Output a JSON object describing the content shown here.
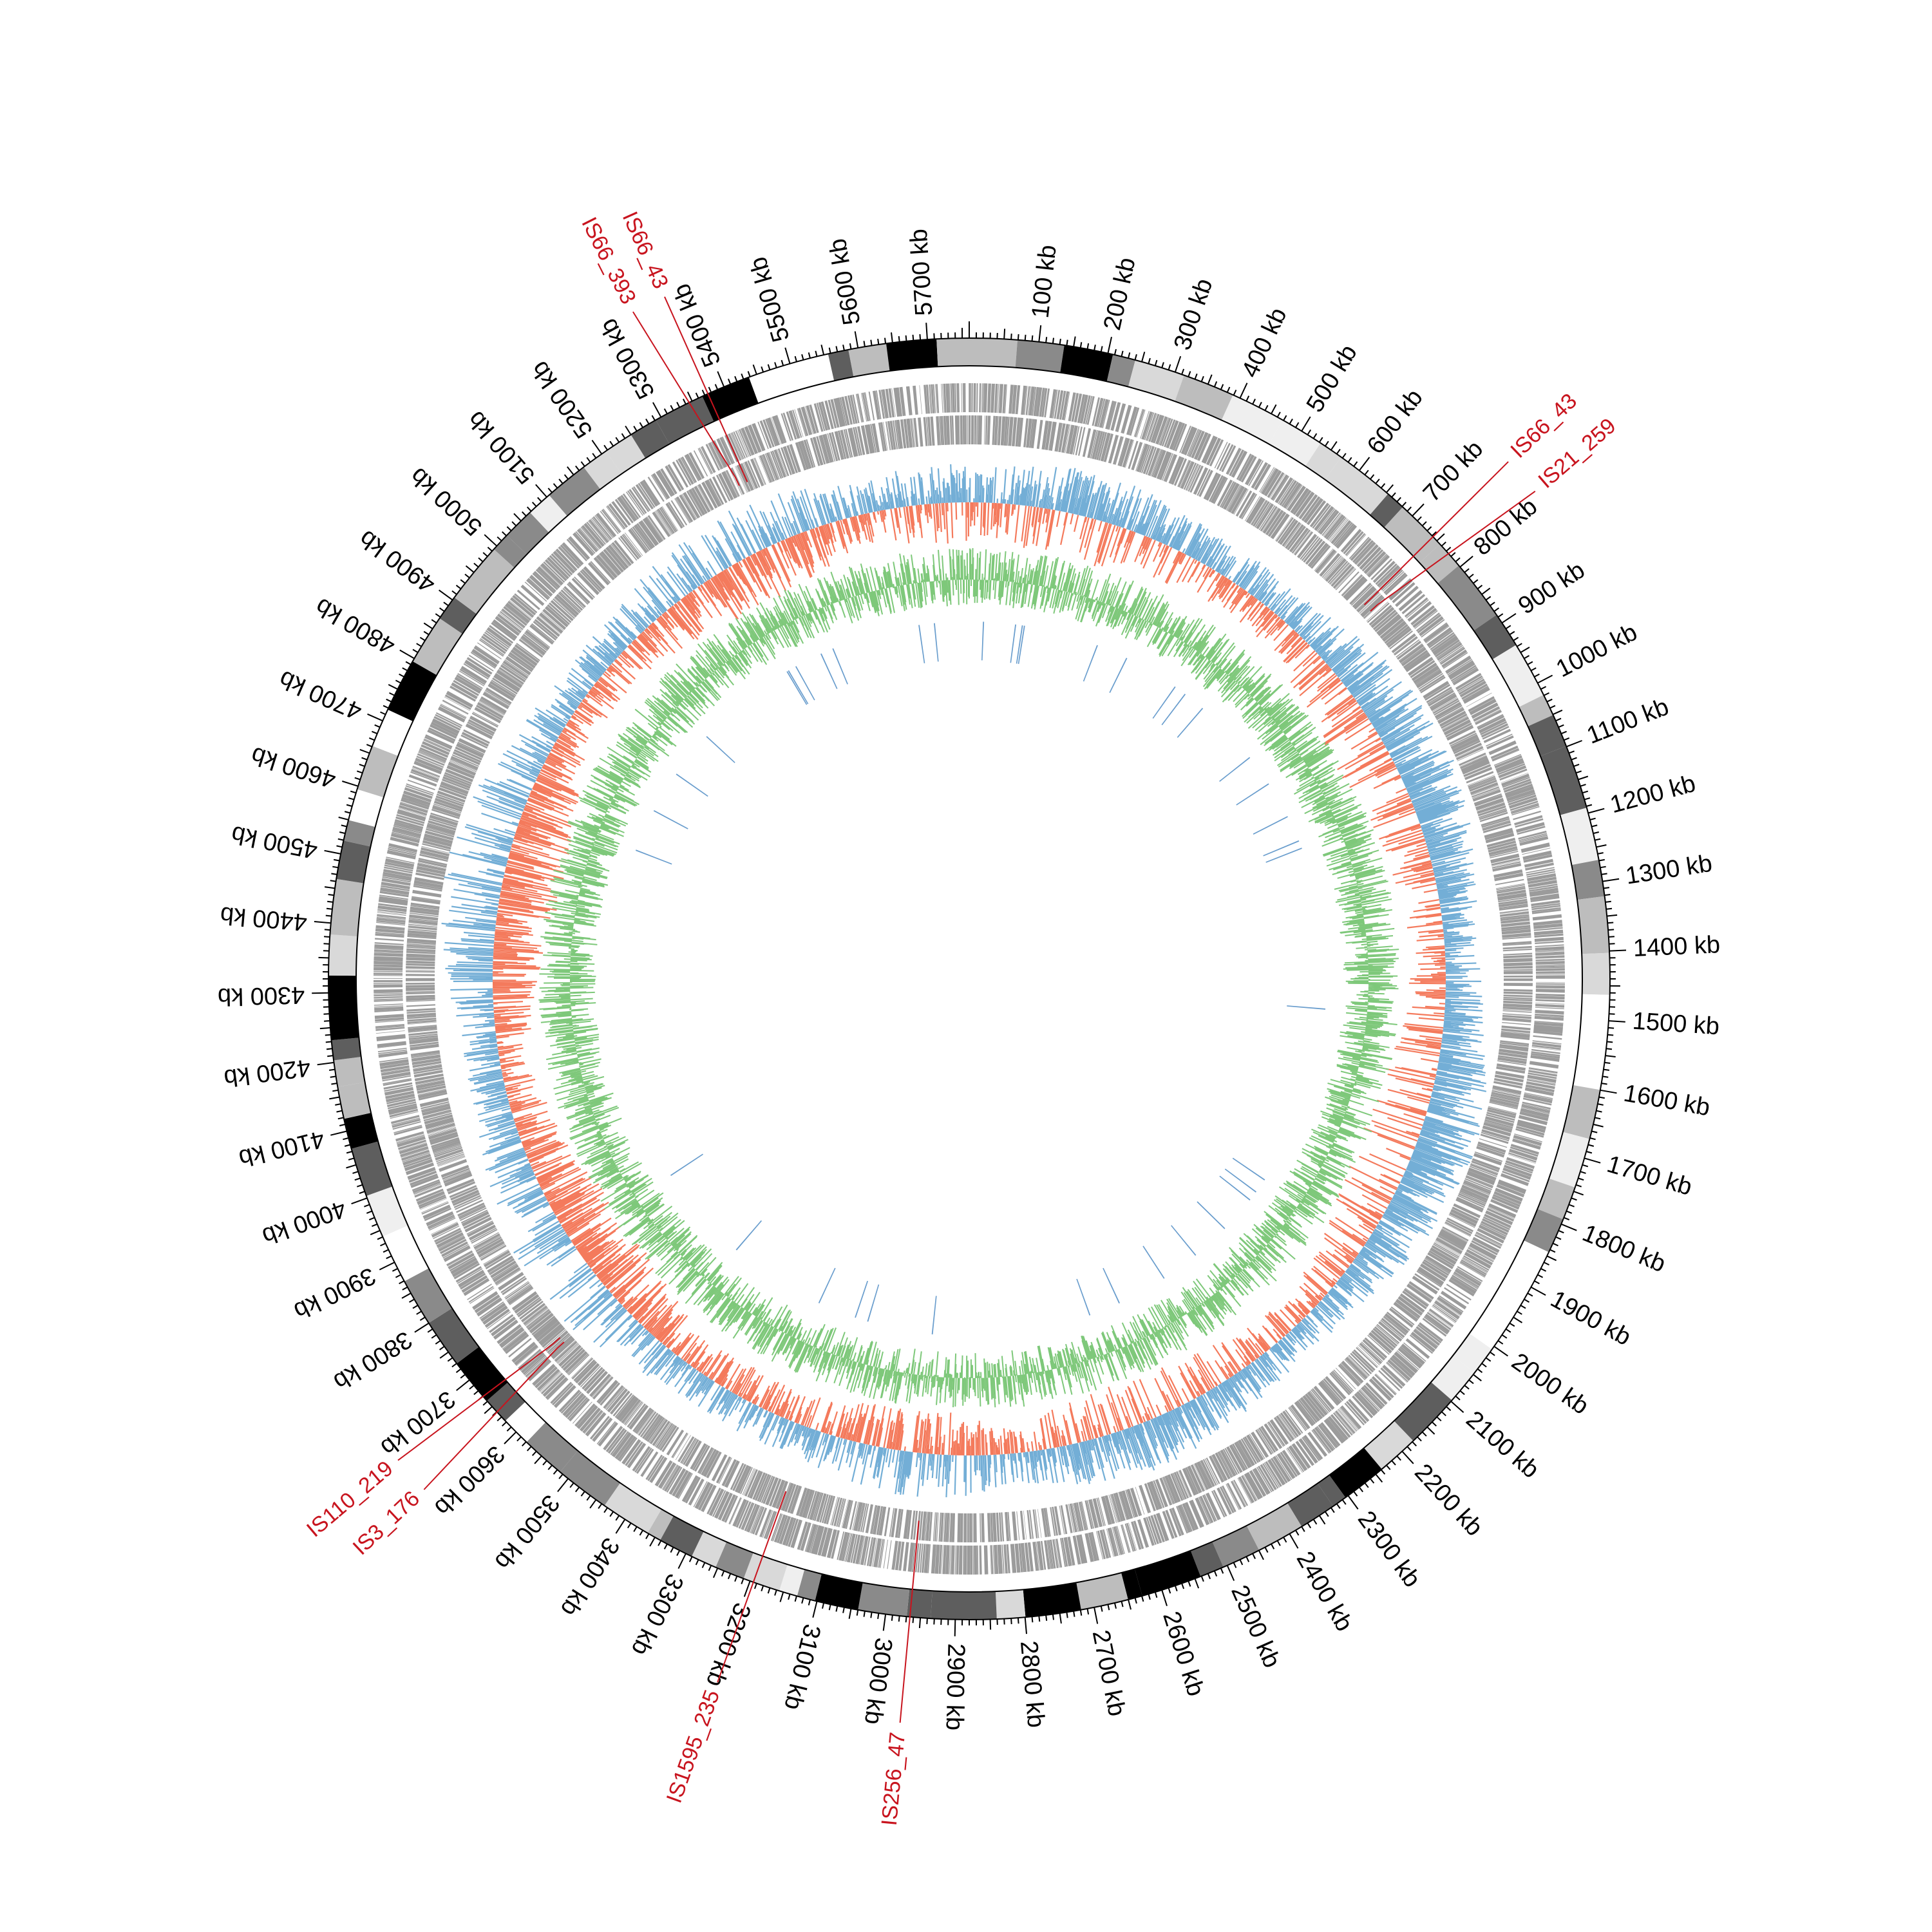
{
  "genome": {
    "length_kb": 5760,
    "tick_labels": [
      "100 kb",
      "200 kb",
      "300 kb",
      "400 kb",
      "500 kb",
      "600 kb",
      "700 kb",
      "800 kb",
      "900 kb",
      "1000 kb",
      "1100 kb",
      "1200 kb",
      "1300 kb",
      "1400 kb",
      "1500 kb",
      "1600 kb",
      "1700 kb",
      "1800 kb",
      "1900 kb",
      "2000 kb",
      "2100 kb",
      "2200 kb",
      "2300 kb",
      "2400 kb",
      "2500 kb",
      "2600 kb",
      "2700 kb",
      "2800 kb",
      "2900 kb",
      "3000 kb",
      "3100 kb",
      "3200 kb",
      "3300 kb",
      "3400 kb",
      "3500 kb",
      "3600 kb",
      "3700 kb",
      "3800 kb",
      "3900 kb",
      "4000 kb",
      "4100 kb",
      "4200 kb",
      "4300 kb",
      "4400 kb",
      "4500 kb",
      "4600 kb",
      "4700 kb",
      "4800 kb",
      "4900 kb",
      "5000 kb",
      "5100 kb",
      "5200 kb",
      "5300 kb",
      "5400 kb",
      "5500 kb",
      "5600 kb",
      "5700 kb"
    ]
  },
  "is_elements": [
    {
      "label": "IS66_43",
      "kb": 5375
    },
    {
      "label": "IS66_393",
      "kb": 5360
    },
    {
      "label": "IS66_43",
      "kb": 745
    },
    {
      "label": "IS21_259",
      "kb": 760
    },
    {
      "label": "IS3_176",
      "kb": 3650
    },
    {
      "label": "IS110_219",
      "kb": 3660
    },
    {
      "label": "IS1595_235",
      "kb": 3195
    },
    {
      "label": "IS256_47",
      "kb": 2965
    }
  ],
  "colors": {
    "is_label": "#c8141e",
    "gene_track": "#9b9b9b",
    "skew_positive": "#73aed6",
    "skew_negative": "#f47a5c",
    "gc_content": "#7ec87a",
    "inner_ring": "#0d4182",
    "inner_ring_light": "#2a73b8"
  }
}
